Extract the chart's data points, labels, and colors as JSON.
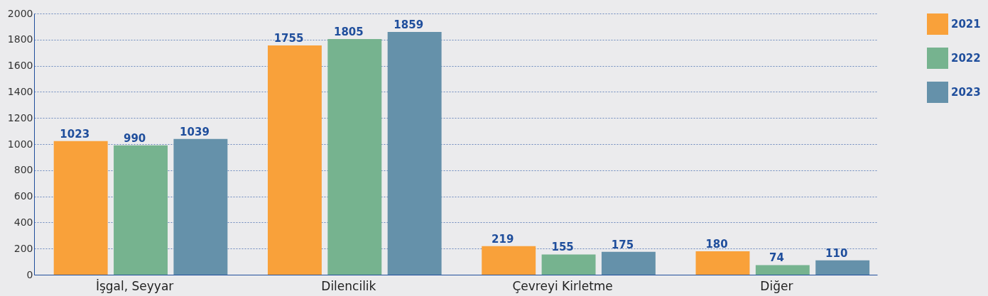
{
  "chart_data": {
    "type": "bar",
    "categories": [
      "İşgal, Seyyar",
      "Dilencilik",
      "Çevreyi Kirletme",
      "Diğer"
    ],
    "series": [
      {
        "name": "2021",
        "color": "#f9a13a",
        "values": [
          1023,
          1755,
          219,
          180
        ]
      },
      {
        "name": "2022",
        "color": "#76b38f",
        "values": [
          990,
          1805,
          155,
          74
        ]
      },
      {
        "name": "2023",
        "color": "#6591aa",
        "values": [
          1039,
          1859,
          175,
          110
        ]
      }
    ],
    "ylim": [
      0,
      2000
    ],
    "yticks": [
      0,
      200,
      400,
      600,
      800,
      1000,
      1200,
      1400,
      1600,
      1800,
      2000
    ],
    "grid": "y",
    "legend": "top right",
    "data_labels": true
  }
}
